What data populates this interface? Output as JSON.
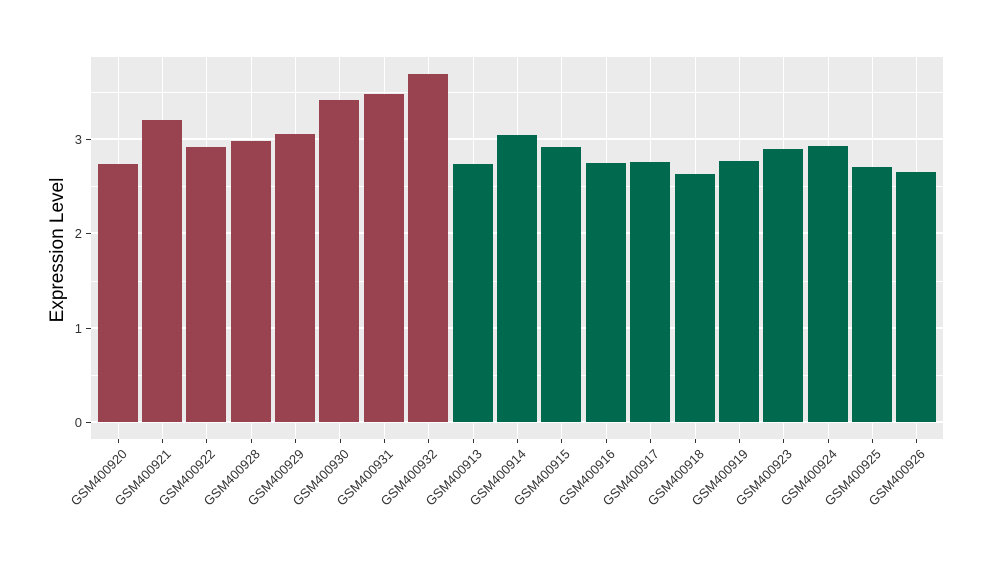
{
  "chart_data": {
    "type": "bar",
    "title": "",
    "xlabel": "",
    "ylabel": "Expression Level",
    "y_ticks": [
      0,
      1,
      2,
      3
    ],
    "ylim": [
      -0.18,
      3.87
    ],
    "grid": "major-and-minor-white-on-gray",
    "legend_position": "none",
    "x_tick_label_rotation_deg": 45,
    "categories": [
      "GSM400920",
      "GSM400921",
      "GSM400922",
      "GSM400928",
      "GSM400929",
      "GSM400930",
      "GSM400931",
      "GSM400932",
      "GSM400913",
      "GSM400914",
      "GSM400915",
      "GSM400916",
      "GSM400917",
      "GSM400918",
      "GSM400919",
      "GSM400923",
      "GSM400924",
      "GSM400925",
      "GSM400926"
    ],
    "values": [
      2.74,
      3.2,
      2.91,
      2.98,
      3.05,
      3.41,
      3.48,
      3.69,
      2.74,
      3.04,
      2.92,
      2.75,
      2.76,
      2.63,
      2.77,
      2.89,
      2.93,
      2.7,
      2.65
    ],
    "groups": [
      "group1",
      "group1",
      "group1",
      "group1",
      "group1",
      "group1",
      "group1",
      "group1",
      "group2",
      "group2",
      "group2",
      "group2",
      "group2",
      "group2",
      "group2",
      "group2",
      "group2",
      "group2",
      "group2"
    ],
    "group_colors": {
      "group1": "#9A4350",
      "group2": "#00694E"
    },
    "colors": {
      "panel_background": "#EBEBEB",
      "gridline": "#FFFFFF",
      "axis_text": "#333333",
      "axis_title": "#000000",
      "figure_background": "#FFFFFF"
    }
  }
}
